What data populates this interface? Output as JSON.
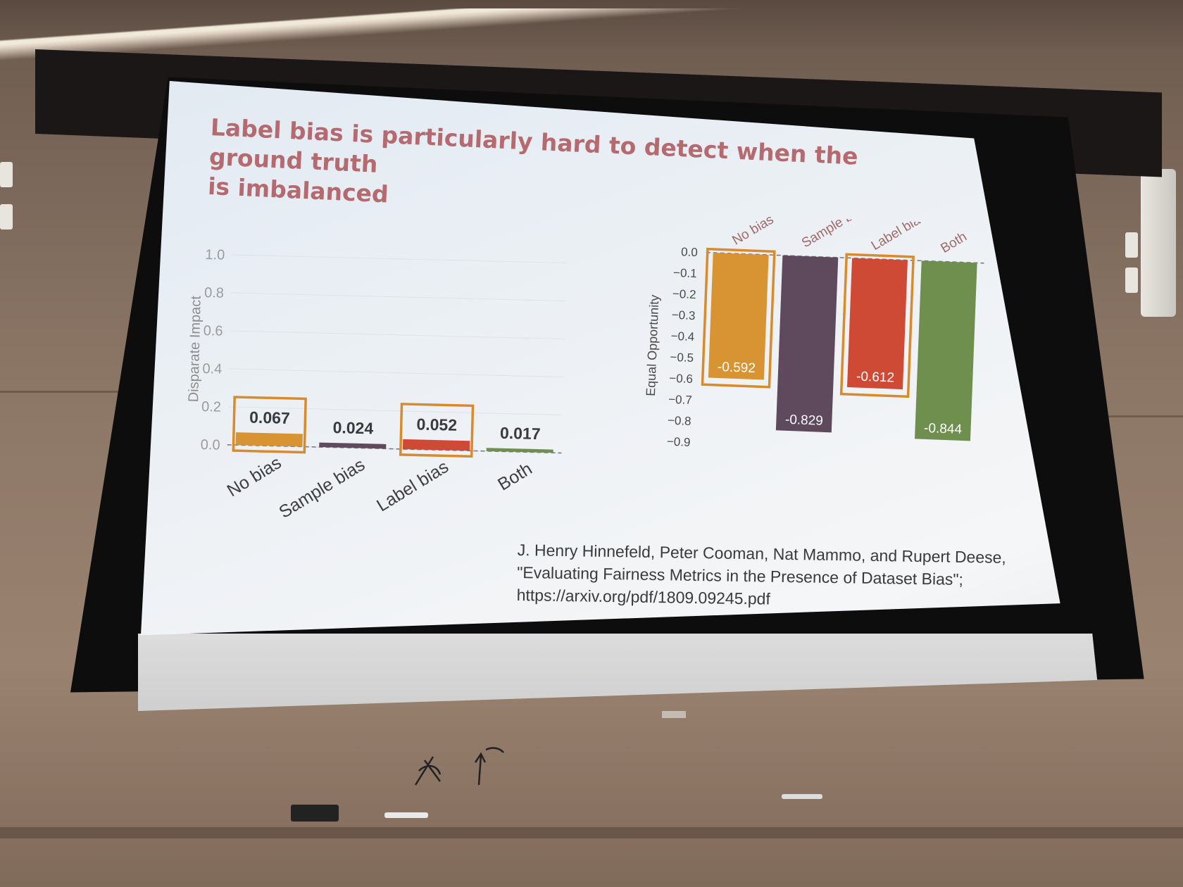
{
  "slide": {
    "title_line1": "Label bias is particularly hard to detect when the ground truth",
    "title_line2": "is imbalanced",
    "citation": {
      "line1": "J. Henry Hinnefeld, Peter Cooman, Nat Mammo, and Rupert Deese,",
      "line2": "\"Evaluating Fairness Metrics in the Presence of Dataset Bias\";",
      "line3": "https://arxiv.org/pdf/1809.09245.pdf"
    }
  },
  "colors": {
    "no_bias": "#d89433",
    "sample_bias": "#5e4a5c",
    "label_bias": "#cf4a34",
    "both": "#6e8f4e",
    "highlight_box": "#d98b2b",
    "title": "#b46a6e"
  },
  "chart_data": [
    {
      "type": "bar",
      "categories": [
        "No bias",
        "Sample bias",
        "Label bias",
        "Both"
      ],
      "values": [
        0.067,
        0.024,
        0.052,
        0.017
      ],
      "value_labels": [
        "0.067",
        "0.024",
        "0.052",
        "0.017"
      ],
      "ylabel": "Disparate Impact",
      "ylim": [
        0,
        1.0
      ],
      "yticks": [
        "1.0",
        "0.8",
        "0.6",
        "0.4",
        "0.2",
        "0.0"
      ],
      "ytick_values": [
        1.0,
        0.8,
        0.6,
        0.4,
        0.2,
        0.0
      ],
      "highlighted": [
        "No bias",
        "Label bias"
      ],
      "grid": true
    },
    {
      "type": "bar",
      "categories": [
        "No bias",
        "Sample bias",
        "Label bias",
        "Both"
      ],
      "values": [
        -0.592,
        -0.829,
        -0.612,
        -0.844
      ],
      "value_labels": [
        "-0.592",
        "-0.829",
        "-0.612",
        "-0.844"
      ],
      "ylabel": "Equal Opportunity",
      "ylim": [
        -0.9,
        0.0
      ],
      "yticks": [
        "0.0",
        "−0.1",
        "−0.2",
        "−0.3",
        "−0.4",
        "−0.5",
        "−0.6",
        "−0.7",
        "−0.8",
        "−0.9"
      ],
      "ytick_values": [
        0.0,
        -0.1,
        -0.2,
        -0.3,
        -0.4,
        -0.5,
        -0.6,
        -0.7,
        -0.8,
        -0.9
      ],
      "highlighted": [
        "No bias",
        "Label bias"
      ],
      "category_labels_position": "top"
    }
  ]
}
